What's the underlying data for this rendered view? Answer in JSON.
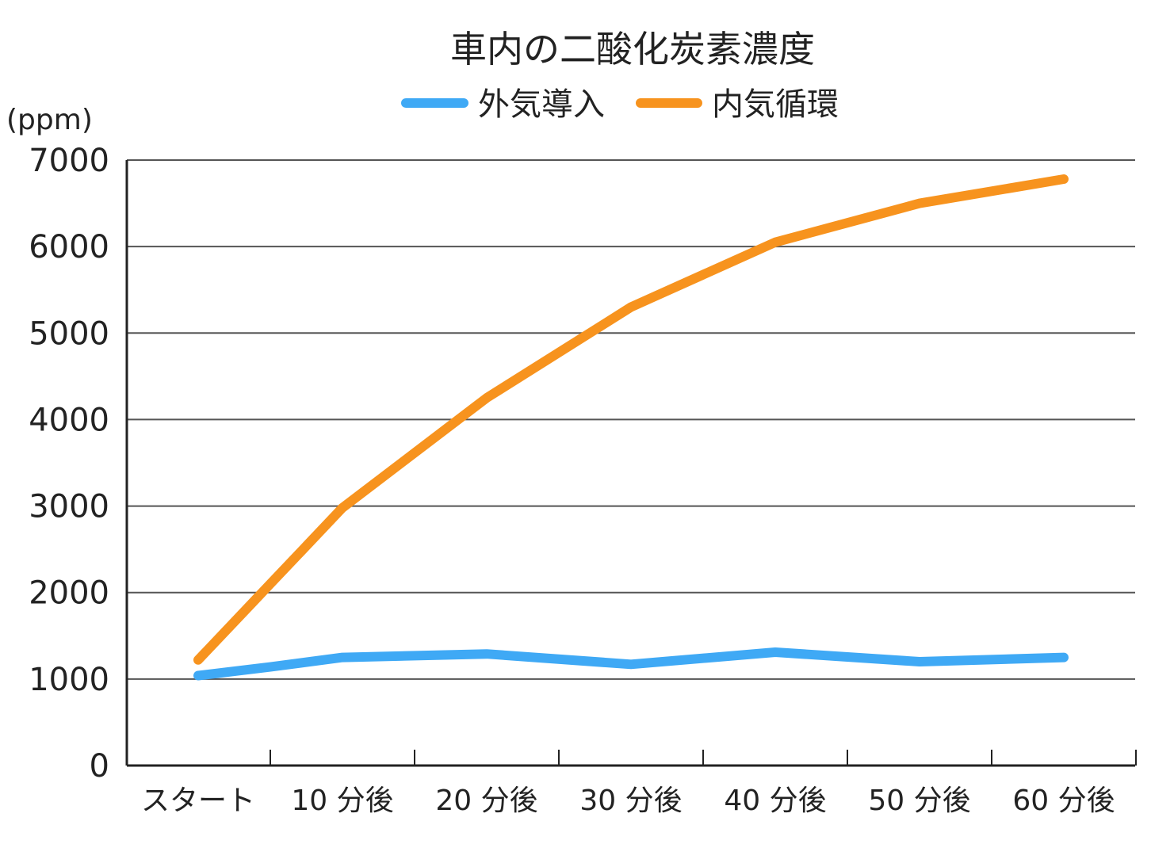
{
  "chart_data": {
    "type": "line",
    "title": "車内の二酸化炭素濃度",
    "ylabel": "(ppm)",
    "xlabel": "",
    "categories": [
      "スタート",
      "10 分後",
      "20 分後",
      "30 分後",
      "40 分後",
      "50 分後",
      "60 分後"
    ],
    "ylim": [
      0,
      7000
    ],
    "yticks": [
      "0",
      "1000",
      "2000",
      "3000",
      "4000",
      "5000",
      "6000",
      "7000"
    ],
    "grid": true,
    "legend_position": "top",
    "series": [
      {
        "name": "外気導入",
        "color": "#3fa9f5",
        "x": [
          0,
          0.5,
          1,
          2,
          3,
          4,
          5,
          6
        ],
        "values": [
          1040,
          1140,
          1250,
          1290,
          1170,
          1310,
          1200,
          1250
        ]
      },
      {
        "name": "内気循環",
        "color": "#f7931e",
        "x": [
          0,
          0.5,
          1,
          2,
          3,
          4,
          5,
          6
        ],
        "values": [
          1220,
          2100,
          2980,
          4250,
          5300,
          6050,
          6500,
          6780
        ]
      }
    ]
  }
}
